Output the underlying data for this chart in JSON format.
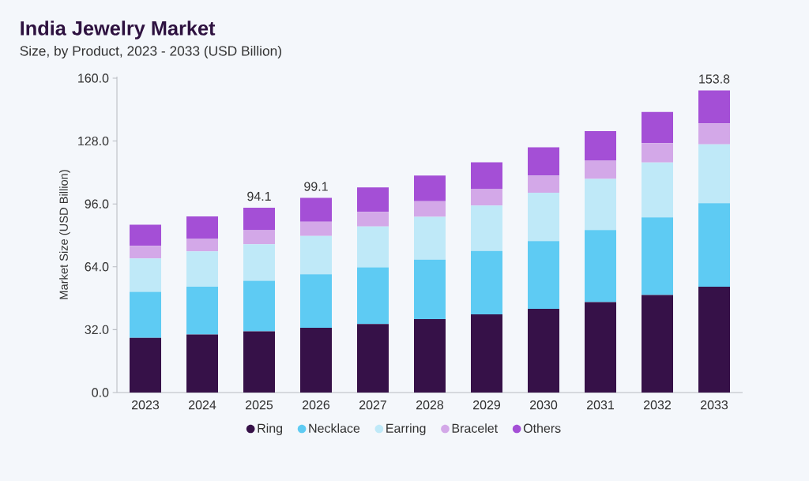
{
  "chart_data": {
    "type": "bar",
    "stacked": true,
    "title": "India Jewelry Market",
    "subtitle": "Size, by Product, 2023 - 2033 (USD Billion)",
    "ylabel": "Market Size (USD Billion)",
    "categories": [
      "2023",
      "2024",
      "2025",
      "2026",
      "2027",
      "2028",
      "2029",
      "2030",
      "2031",
      "2032",
      "2033"
    ],
    "series": [
      {
        "name": "Ring",
        "color": "#361148",
        "values": [
          27.8,
          29.5,
          31.1,
          33.0,
          34.9,
          37.4,
          39.8,
          42.6,
          46.0,
          49.6,
          53.9
        ]
      },
      {
        "name": "Necklace",
        "color": "#5ecbf3",
        "values": [
          23.4,
          24.4,
          25.8,
          27.2,
          28.8,
          30.2,
          32.3,
          34.5,
          36.7,
          39.5,
          42.5
        ]
      },
      {
        "name": "Earring",
        "color": "#bfe9f8",
        "values": [
          17.0,
          18.0,
          18.6,
          19.5,
          20.8,
          21.8,
          23.1,
          24.6,
          26.0,
          28.0,
          29.9
        ]
      },
      {
        "name": "Bracelet",
        "color": "#d3a8e8",
        "values": [
          6.5,
          6.3,
          7.1,
          7.2,
          7.5,
          8.0,
          8.3,
          8.7,
          9.5,
          9.8,
          10.7
        ]
      },
      {
        "name": "Others",
        "color": "#a44fd6",
        "values": [
          10.7,
          11.4,
          11.5,
          12.2,
          12.4,
          13.0,
          13.7,
          14.4,
          14.9,
          15.9,
          16.8
        ]
      }
    ],
    "totals": [
      null,
      null,
      "94.1",
      "99.1",
      null,
      null,
      null,
      null,
      null,
      null,
      "153.8"
    ],
    "ylim": [
      0,
      160
    ],
    "yticks": [
      {
        "value": 0,
        "label": "0.0"
      },
      {
        "value": 32,
        "label": "32.0"
      },
      {
        "value": 64,
        "label": "64.0"
      },
      {
        "value": 96,
        "label": "96.0"
      },
      {
        "value": 128,
        "label": "128.0"
      },
      {
        "value": 160,
        "label": "160.0"
      }
    ],
    "legend": "bottom"
  }
}
